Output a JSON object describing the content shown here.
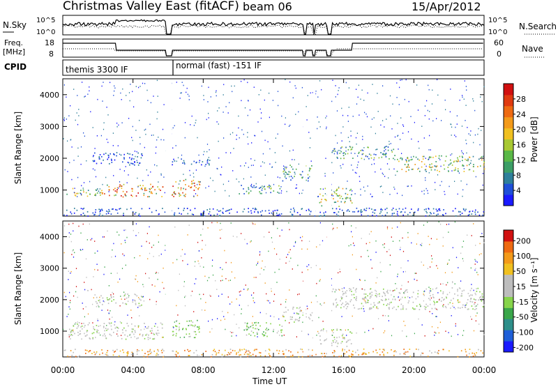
{
  "header": {
    "title": "Christmas Valley East (fitACF)",
    "beam": "beam 06",
    "date": "15/Apr/2012"
  },
  "top_panels": {
    "nsky": {
      "left_label": "N.Sky",
      "left_ticks": [
        "10^5",
        "10^0"
      ],
      "right_label": "N.Search",
      "right_ticks": [
        "10^5",
        "10^0"
      ]
    },
    "freq": {
      "left_label_line1": "Freq.",
      "left_label_line2": "[MHz]",
      "left_ticks": [
        "18",
        "8"
      ],
      "right_label": "Nave",
      "right_ticks": [
        "60",
        "0"
      ]
    },
    "cpid": {
      "label": "CPID",
      "modes": [
        {
          "name": "themis 3300 IF"
        },
        {
          "name": "normal (fast) -151 IF"
        }
      ]
    }
  },
  "chart_data": [
    {
      "type": "heatmap",
      "name": "power",
      "ylabel": "Slant Range [km]",
      "xlabel": "",
      "yticks": [
        "1000",
        "2000",
        "3000",
        "4000"
      ],
      "ylim": [
        180,
        4500
      ],
      "xlim": [
        0,
        24
      ],
      "colorbar": {
        "label": "Power [dB]",
        "ticks": [
          "4",
          "8",
          "12",
          "16",
          "20",
          "24",
          "28"
        ],
        "colors": [
          "#1a1aff",
          "#1f4fd8",
          "#2e7f9a",
          "#3c9e66",
          "#5ab847",
          "#a8c832",
          "#f0c020",
          "#f39a1a",
          "#ee6a12",
          "#e03a10",
          "#d11010"
        ]
      },
      "echo_regions": [
        {
          "t_start": 0.2,
          "t_end": 2.2,
          "r_min": 800,
          "r_max": 1100,
          "level": "high"
        },
        {
          "t_start": 2.2,
          "t_end": 5.7,
          "r_min": 800,
          "r_max": 1200,
          "level": "peak"
        },
        {
          "t_start": 6.2,
          "t_end": 7.8,
          "r_min": 800,
          "r_max": 1400,
          "level": "peak"
        },
        {
          "t_start": 1.7,
          "t_end": 4.5,
          "r_min": 1800,
          "r_max": 2200,
          "level": "low"
        },
        {
          "t_start": 6.0,
          "t_end": 8.5,
          "r_min": 1800,
          "r_max": 2000,
          "level": "low"
        },
        {
          "t_start": 10.0,
          "t_end": 12.5,
          "r_min": 900,
          "r_max": 1200,
          "level": "mid"
        },
        {
          "t_start": 12.5,
          "t_end": 14.2,
          "r_min": 1300,
          "r_max": 1800,
          "level": "mid"
        },
        {
          "t_start": 14.5,
          "t_end": 16.5,
          "r_min": 500,
          "r_max": 1100,
          "level": "high"
        },
        {
          "t_start": 15.3,
          "t_end": 19.0,
          "r_min": 2000,
          "r_max": 2400,
          "level": "mid"
        },
        {
          "t_start": 19.0,
          "t_end": 24.0,
          "r_min": 1600,
          "r_max": 2100,
          "level": "high"
        },
        {
          "t_start": 0.0,
          "t_end": 24.0,
          "r_min": 200,
          "r_max": 450,
          "level": "low"
        }
      ]
    },
    {
      "type": "heatmap",
      "name": "velocity",
      "ylabel": "Slant Range [km]",
      "xlabel": "Time UT",
      "yticks": [
        "1000",
        "2000",
        "3000",
        "4000"
      ],
      "xticks": [
        "00:00",
        "04:00",
        "08:00",
        "12:00",
        "16:00",
        "20:00",
        "00:00"
      ],
      "ylim": [
        180,
        4500
      ],
      "xlim": [
        0,
        24
      ],
      "colorbar": {
        "label": "Velocity [m s⁻¹]",
        "ticks": [
          "200",
          "100",
          "50",
          "15",
          "-15",
          "-50",
          "-100",
          "-200"
        ],
        "colors": [
          "#1a1aff",
          "#1f5fd8",
          "#2e8f8a",
          "#3aa64a",
          "#86d44a",
          "#bdbdbd",
          "#bdbdbd",
          "#f0c020",
          "#f39a1a",
          "#ee6a12",
          "#d11010"
        ]
      },
      "echo_regions": [
        {
          "t_start": 0.3,
          "t_end": 5.7,
          "r_min": 750,
          "r_max": 1300,
          "level": "ground"
        },
        {
          "t_start": 6.2,
          "t_end": 7.8,
          "r_min": 800,
          "r_max": 1400,
          "level": "toward"
        },
        {
          "t_start": 1.8,
          "t_end": 4.5,
          "r_min": 1800,
          "r_max": 2200,
          "level": "ground"
        },
        {
          "t_start": 10.3,
          "t_end": 12.5,
          "r_min": 850,
          "r_max": 1300,
          "level": "toward"
        },
        {
          "t_start": 12.5,
          "t_end": 14.2,
          "r_min": 1300,
          "r_max": 1800,
          "level": "ground"
        },
        {
          "t_start": 14.5,
          "t_end": 16.5,
          "r_min": 500,
          "r_max": 1100,
          "level": "ground"
        },
        {
          "t_start": 15.3,
          "t_end": 24.0,
          "r_min": 1700,
          "r_max": 2400,
          "level": "ground"
        },
        {
          "t_start": 0.0,
          "t_end": 24.0,
          "r_min": 200,
          "r_max": 450,
          "level": "away"
        }
      ]
    }
  ]
}
